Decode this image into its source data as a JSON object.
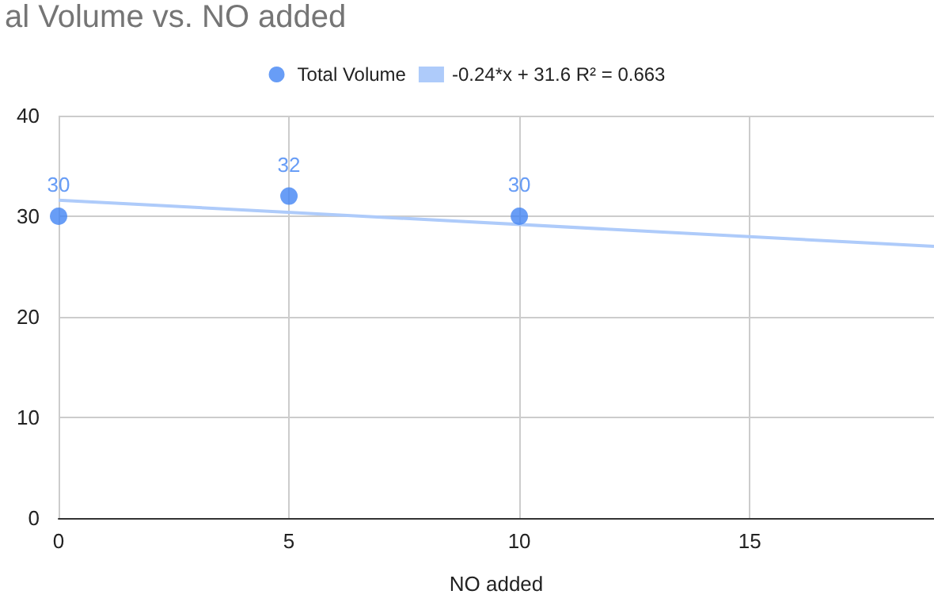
{
  "chart_data": {
    "type": "scatter",
    "title": "al Volume vs. NO added",
    "xlabel": "NO added",
    "series": [
      {
        "name": "Total Volume",
        "marker": "circle",
        "color": "#4285f4",
        "x": [
          0,
          5,
          10
        ],
        "values": [
          30,
          32,
          30
        ],
        "data_labels": true
      },
      {
        "name": "-0.24*x + 31.6 R² = 0.663",
        "type": "line",
        "marker": "none",
        "color": "#aecbfa",
        "x": [
          0,
          19
        ],
        "values": [
          31.6,
          27
        ]
      }
    ],
    "xlim": [
      0,
      19
    ],
    "xticks": [
      0,
      5,
      10,
      15
    ],
    "ylim": [
      0,
      40
    ],
    "yticks": [
      0,
      10,
      20,
      30,
      40
    ],
    "grid": true,
    "legend": "top"
  }
}
